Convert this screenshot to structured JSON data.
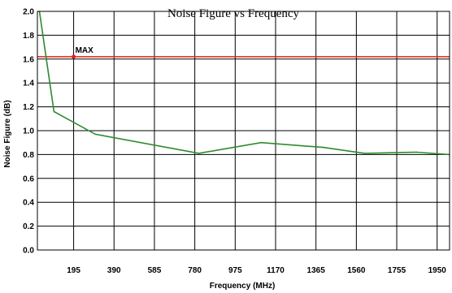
{
  "chart_data": {
    "type": "line",
    "title": "Noise Figure vs Frequency",
    "xlabel": "Frequency (MHz)",
    "ylabel": "Noise Figure (dB)",
    "xlim": [
      20,
      2010
    ],
    "ylim": [
      0.0,
      2.0
    ],
    "x_ticks": [
      195,
      390,
      585,
      780,
      975,
      1170,
      1365,
      1560,
      1755,
      1950
    ],
    "y_ticks": [
      0.0,
      0.2,
      0.4,
      0.6,
      0.8,
      1.0,
      1.2,
      1.4,
      1.6,
      1.8,
      2.0
    ],
    "y_tick_labels": [
      "0.0",
      "0.2",
      "0.4",
      "0.6",
      "0.8",
      "1.0",
      "1.2",
      "1.4",
      "1.6",
      "1.8",
      "2.0"
    ],
    "grid": true,
    "series": [
      {
        "color": "#2e8b2e",
        "x": [
          30,
          100,
          300,
          800,
          1100,
          1400,
          1600,
          1850,
          2010
        ],
        "y": [
          2.0,
          1.16,
          0.97,
          0.81,
          0.9,
          0.86,
          0.81,
          0.82,
          0.8
        ]
      }
    ],
    "limit_line": {
      "label": "MAX",
      "y": 1.62,
      "marker_x": 195,
      "color": "#e0201a"
    }
  }
}
